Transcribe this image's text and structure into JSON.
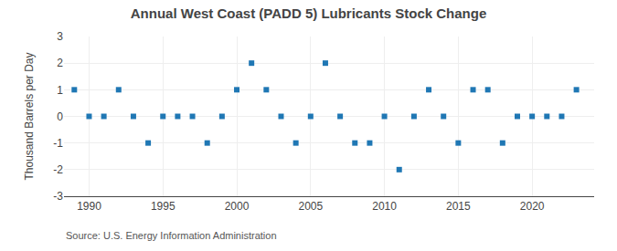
{
  "chart_data": {
    "type": "scatter",
    "title": "Annual West Coast (PADD 5) Lubricants Stock Change",
    "y_label": "Thousand Barrels per Day",
    "annotations": [
      "Source: U.S. Energy Information Administration"
    ],
    "x": [
      1989,
      1990,
      1991,
      1992,
      1993,
      1994,
      1995,
      1996,
      1997,
      1998,
      1999,
      2000,
      2001,
      2002,
      2003,
      2004,
      2005,
      2006,
      2007,
      2008,
      2009,
      2010,
      2011,
      2012,
      2013,
      2014,
      2015,
      2016,
      2017,
      2018,
      2019,
      2020,
      2021,
      2022,
      2023
    ],
    "values": [
      1.0,
      0.0,
      0.0,
      1.0,
      0.0,
      -1.0,
      0.0,
      0.0,
      0.0,
      -1.0,
      0.0,
      1.0,
      2.0,
      1.0,
      0.0,
      -1.0,
      0.0,
      2.0,
      0.0,
      -1.0,
      -1.0,
      0.0,
      -2.0,
      0.0,
      1.0,
      0.0,
      -1.0,
      1.0,
      1.0,
      -1.0,
      0.0,
      0.0,
      0.0,
      0.0,
      1.0
    ],
    "marker": "square",
    "xlim": [
      1988.3,
      2024.2
    ],
    "xticks": [
      1990,
      1995,
      2000,
      2005,
      2010,
      2015,
      2020
    ],
    "ylim": [
      -3.0,
      3.0
    ],
    "yticks": [
      -3,
      -2,
      -1,
      0,
      1,
      2,
      3
    ],
    "grid": true
  }
}
